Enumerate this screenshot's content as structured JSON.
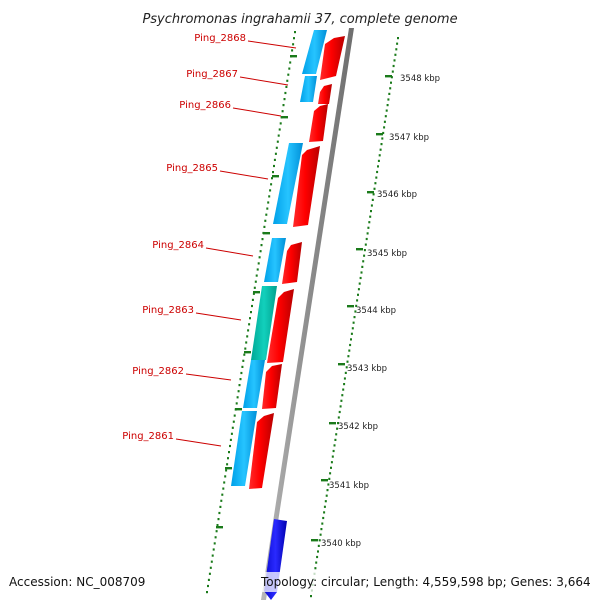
{
  "title": "Psychromonas ingrahamii 37, complete genome",
  "footer": {
    "accession": "Accession: NC_008709",
    "topology": "Topology: circular; Length: 4,559,598 bp; Genes: 3,664"
  },
  "ticks": [
    {
      "label": "3548 kbp"
    },
    {
      "label": "3547 kbp"
    },
    {
      "label": "3546 kbp"
    },
    {
      "label": "3545 kbp"
    },
    {
      "label": "3544 kbp"
    },
    {
      "label": "3543 kbp"
    },
    {
      "label": "3542 kbp"
    },
    {
      "label": "3541 kbp"
    },
    {
      "label": "3540 kbp"
    }
  ],
  "genes": [
    {
      "label": "Ping_2868"
    },
    {
      "label": "Ping_2867"
    },
    {
      "label": "Ping_2866"
    },
    {
      "label": "Ping_2865"
    },
    {
      "label": "Ping_2864"
    },
    {
      "label": "Ping_2863"
    },
    {
      "label": "Ping_2862"
    },
    {
      "label": "Ping_2861"
    }
  ],
  "colors": {
    "cds_forward": "#ff0000",
    "cog_cyan": "#00b4ff",
    "cog_teal": "#00c2b0",
    "rna_blue": "#1010e0",
    "backbone": "#999999",
    "gene_label": "#cc0000",
    "tick_marks": "#1a7a1a"
  }
}
